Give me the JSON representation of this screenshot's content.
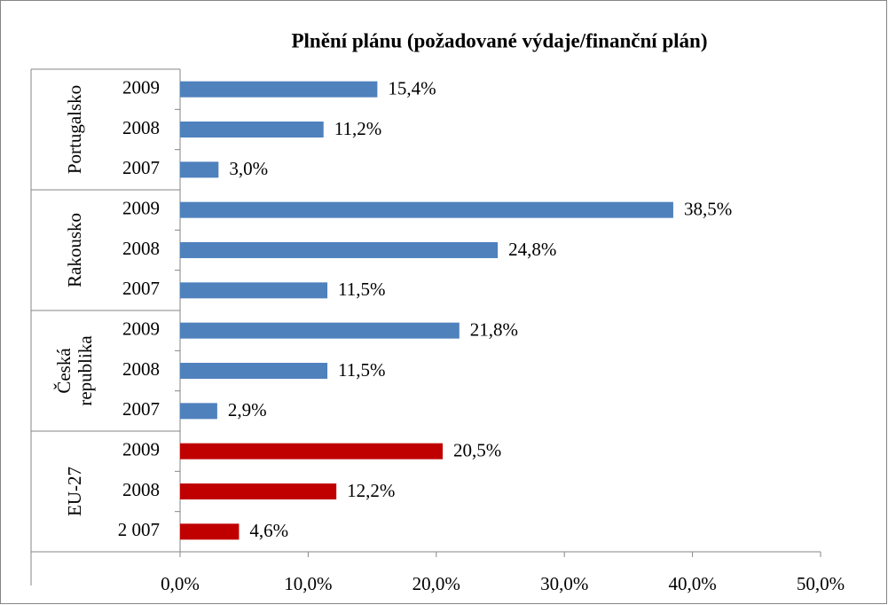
{
  "chart_data": {
    "type": "bar",
    "orientation": "horizontal",
    "title": "Plnění plánu (požadované výdaje/finanční plán)",
    "groups": [
      {
        "name": "Portugalsko",
        "color": "#4f81bd",
        "categories": [
          "2009",
          "2008",
          "2007"
        ],
        "values": [
          15.4,
          11.2,
          3.0
        ],
        "value_labels": [
          "15,4%",
          "11,2%",
          "3,0%"
        ]
      },
      {
        "name": "Rakousko",
        "color": "#4f81bd",
        "categories": [
          "2009",
          "2008",
          "2007"
        ],
        "values": [
          38.5,
          24.8,
          11.5
        ],
        "value_labels": [
          "38,5%",
          "24,8%",
          "11,5%"
        ]
      },
      {
        "name": "Česká republika",
        "color": "#4f81bd",
        "categories": [
          "2009",
          "2008",
          "2007"
        ],
        "values": [
          21.8,
          11.5,
          2.9
        ],
        "value_labels": [
          "21,8%",
          "11,5%",
          "2,9%"
        ]
      },
      {
        "name": "EU-27",
        "color": "#c00000",
        "categories": [
          "2009",
          "2008",
          "2 007"
        ],
        "values": [
          20.5,
          12.2,
          4.6
        ],
        "value_labels": [
          "20,5%",
          "12,2%",
          "4,6%"
        ]
      }
    ],
    "xlim": [
      0,
      50
    ],
    "xticks": [
      {
        "value": 0,
        "label": "0,0%"
      },
      {
        "value": 10,
        "label": "10,0%"
      },
      {
        "value": 20,
        "label": "20,0%"
      },
      {
        "value": 30,
        "label": "30,0%"
      },
      {
        "value": 40,
        "label": "40,0%"
      },
      {
        "value": 50,
        "label": "50,0%"
      }
    ],
    "grid": false
  }
}
